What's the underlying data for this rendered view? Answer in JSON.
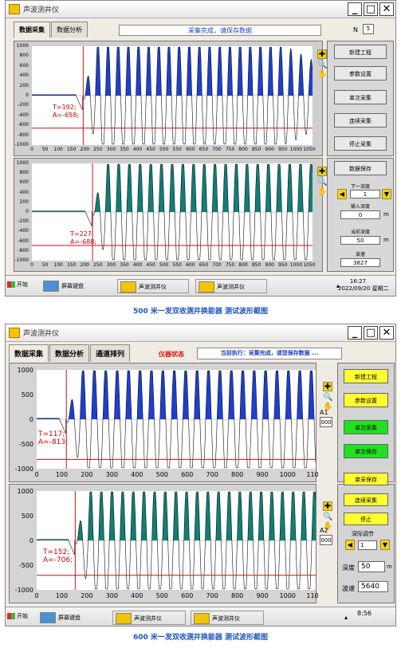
{
  "screen1": {
    "title": "声波测井仪",
    "tabs": [
      "数据采集",
      "数据分析"
    ],
    "status_text": "采集完成，请保存数据",
    "n_label": "N",
    "n_value": "5",
    "buttons": [
      "新建工程",
      "参数设置",
      "单次采集",
      "连续采集",
      "停止采集",
      "数据保存"
    ],
    "next_depth_label": "下一深度",
    "next_depth_value": "1",
    "input_depth_label": "输入深度",
    "input_depth_value": "0",
    "input_depth_unit": "m",
    "current_depth_label": "当前深度",
    "current_depth_value": "50",
    "current_depth_unit": "m",
    "velocity_label": "波速",
    "velocity_value": "3827",
    "plot1": {
      "t_label": "T=192;",
      "a_label": "A=-658;"
    },
    "plot2": {
      "t_label": "T=227;",
      "a_label": "A=-688;"
    },
    "yticks": [
      "1000",
      "800",
      "600",
      "400",
      "200",
      "0",
      "-200",
      "-400",
      "-600",
      "-800",
      "-1000"
    ],
    "xticks": [
      "0",
      "50",
      "100",
      "150",
      "200",
      "250",
      "300",
      "350",
      "400",
      "450",
      "500",
      "550",
      "600",
      "650",
      "700",
      "750",
      "800",
      "850",
      "900",
      "950",
      "1000",
      "1050"
    ],
    "taskbar": {
      "start": "开始",
      "items": [
        "屏幕键盘",
        "声波测井仪",
        "声波测井仪"
      ],
      "time": "16:27",
      "date": "2022/09/20 星期二"
    }
  },
  "caption1": "500 米一发双收测井换能器 测试波形截图",
  "screen2": {
    "title": "声波测井仪",
    "tabs": [
      "数据采集",
      "数据分析",
      "通道排列"
    ],
    "instrument_status": "仪器状态",
    "status_text": "当前执行：采集完成，请您保存数据 ...",
    "buttons_top": [
      "新建工程",
      "参数设置",
      "单次采集",
      "单次保存"
    ],
    "buttons_bottom": [
      "单采保存",
      "连续采集",
      "停止"
    ],
    "a1_label": "A1",
    "a1_value": "000",
    "a2_label": "A2",
    "a2_value": "000",
    "depth_step_label": "深际调节",
    "depth_step_value": "1",
    "depth_label": "深度",
    "depth_value": "50",
    "depth_unit": "m",
    "velocity_label": "波速",
    "velocity_value": "5640",
    "plot1": {
      "t_label": "T=117;",
      "a_label": "A=-813;"
    },
    "plot2": {
      "t_label": "T=152;",
      "a_label": "A=-706;"
    },
    "yticks": [
      "1000",
      "500",
      "0",
      "-500",
      "-1000"
    ],
    "xticks": [
      "0",
      "100",
      "200",
      "300",
      "400",
      "500",
      "600",
      "700",
      "800",
      "900",
      "1000",
      "110"
    ],
    "taskbar": {
      "start": "开始",
      "items": [
        "屏幕键盘",
        "声波测井仪",
        "声波测井仪"
      ],
      "time": "8:56"
    }
  },
  "caption2": "600 米一发双收测井换能器 测试波形截图",
  "colors": {
    "wave_blue": "#1e3fcf",
    "wave_teal": "#0f7f78",
    "marker_red": "#cc1111",
    "status_blue": "#1a40c8",
    "caption_blue": "#1a56c0"
  },
  "chart_data": [
    {
      "type": "line",
      "x_range": [
        0,
        1050
      ],
      "ylim": [
        -1000,
        1000
      ],
      "fill_color": "#1e3fcf",
      "wave_start": 190,
      "wave_period": 38,
      "cursor_x": 192,
      "cursor_y": -658,
      "peak_amplitude": 1000,
      "taper_start": 900
    },
    {
      "type": "line",
      "x_range": [
        0,
        1050
      ],
      "ylim": [
        -1000,
        1000
      ],
      "fill_color": "#0f7f78",
      "wave_start": 225,
      "wave_period": 40,
      "cursor_x": 227,
      "cursor_y": -688,
      "peak_amplitude": 1000,
      "taper_start": 1050
    },
    {
      "type": "line",
      "x_range": [
        0,
        1100
      ],
      "ylim": [
        -1000,
        1000
      ],
      "fill_color": "#1e3fcf",
      "wave_start": 115,
      "wave_period": 45,
      "cursor_x": 117,
      "cursor_y": -813,
      "peak_amplitude": 1000,
      "taper_start": 1100
    },
    {
      "type": "line",
      "x_range": [
        0,
        1100
      ],
      "ylim": [
        -1000,
        1000
      ],
      "fill_color": "#0f7f78",
      "wave_start": 150,
      "wave_period": 42,
      "cursor_x": 152,
      "cursor_y": -706,
      "peak_amplitude": 1000,
      "taper_start": 1100
    }
  ]
}
